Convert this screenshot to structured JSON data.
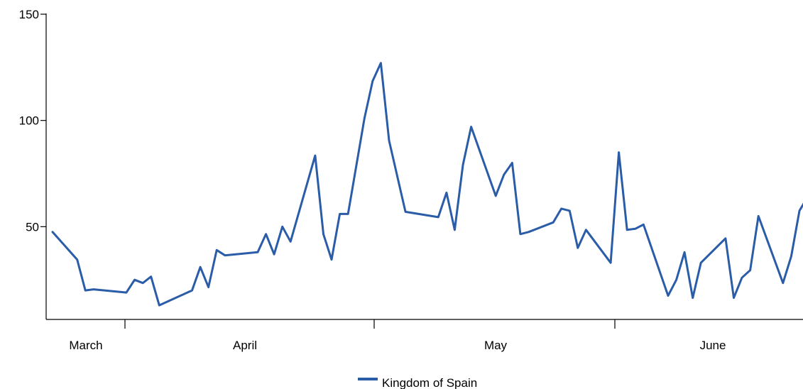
{
  "chart_data": {
    "type": "line",
    "title": "",
    "xlabel": "",
    "ylabel": "",
    "ylim": [
      0,
      150
    ],
    "y_ticks": [
      50,
      100,
      150
    ],
    "y_tick_labels": [
      "50",
      "100",
      "150"
    ],
    "x_tick_labels": [
      {
        "label": "March"
      },
      {
        "label": "April"
      },
      {
        "label": "May"
      },
      {
        "label": "June"
      }
    ],
    "grid": false,
    "legend_position": "bottom-center",
    "series": [
      {
        "name": "Kingdom of Spain",
        "color": "#2a5ca8",
        "points": [
          [
            0,
            47.5
          ],
          [
            3,
            34.5
          ],
          [
            4,
            20
          ],
          [
            5,
            20.5
          ],
          [
            9,
            19
          ],
          [
            10,
            25
          ],
          [
            11,
            23.5
          ],
          [
            12,
            26.5
          ],
          [
            13,
            13
          ],
          [
            17,
            20
          ],
          [
            18,
            31
          ],
          [
            19,
            21.5
          ],
          [
            20,
            39
          ],
          [
            21,
            36.5
          ],
          [
            25,
            38
          ],
          [
            26,
            46.5
          ],
          [
            27,
            37
          ],
          [
            28,
            50
          ],
          [
            29,
            43
          ],
          [
            32,
            83.5
          ],
          [
            33,
            46.5
          ],
          [
            34,
            34.5
          ],
          [
            35,
            56
          ],
          [
            36,
            56
          ],
          [
            38,
            101
          ],
          [
            39,
            118.5
          ],
          [
            40,
            127
          ],
          [
            41,
            90.5
          ],
          [
            43,
            57
          ],
          [
            47,
            54.5
          ],
          [
            48,
            66
          ],
          [
            49,
            48.5
          ],
          [
            50,
            79
          ],
          [
            51,
            97
          ],
          [
            54,
            64.5
          ],
          [
            55,
            74.5
          ],
          [
            56,
            80
          ],
          [
            57,
            46.5
          ],
          [
            58,
            47.5
          ],
          [
            61,
            52
          ],
          [
            62,
            58.5
          ],
          [
            63,
            57.5
          ],
          [
            64,
            40
          ],
          [
            65,
            48.5
          ],
          [
            68,
            33
          ],
          [
            69,
            85
          ],
          [
            70,
            48.5
          ],
          [
            71,
            49
          ],
          [
            72,
            51
          ],
          [
            75,
            17.5
          ],
          [
            76,
            25
          ],
          [
            77,
            38
          ],
          [
            78,
            16.5
          ],
          [
            79,
            33
          ],
          [
            82,
            44.5
          ],
          [
            83,
            16.5
          ],
          [
            84,
            26
          ],
          [
            85,
            29.5
          ],
          [
            86,
            55
          ],
          [
            89,
            23.5
          ],
          [
            90,
            36
          ],
          [
            91,
            57.5
          ],
          [
            92,
            64
          ]
        ]
      }
    ]
  }
}
